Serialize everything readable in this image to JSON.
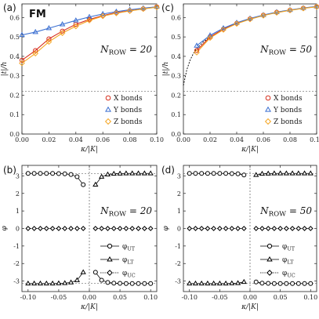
{
  "figure": {
    "tag": "FM"
  },
  "chart_data": [
    {
      "id": "a",
      "type": "line",
      "panel_label": "(a)",
      "annotation": "N_ROW = 20",
      "xlabel": "κ/|K|",
      "ylabel": "|t|/h",
      "xlim": [
        0,
        0.1
      ],
      "ylim": [
        0,
        0.67
      ],
      "xticks": [
        "0.00",
        "0.02",
        "0.04",
        "0.06",
        "0.08",
        "0.10"
      ],
      "yticks": [
        "0.0",
        "0.1",
        "0.2",
        "0.3",
        "0.4",
        "0.5",
        "0.6"
      ],
      "hline": 0.22,
      "legend": "bottom-right",
      "x": [
        0.0,
        0.01,
        0.02,
        0.03,
        0.04,
        0.05,
        0.06,
        0.07,
        0.08,
        0.09,
        0.1
      ],
      "series": [
        {
          "name": "X bonds",
          "color": "#d7301f",
          "marker": "circle",
          "values": [
            0.38,
            0.43,
            0.49,
            0.53,
            0.565,
            0.59,
            0.61,
            0.625,
            0.635,
            0.645,
            0.655
          ]
        },
        {
          "name": "Y bonds",
          "color": "#3b6fd1",
          "marker": "triangle",
          "values": [
            0.51,
            0.525,
            0.545,
            0.565,
            0.585,
            0.603,
            0.618,
            0.63,
            0.64,
            0.648,
            0.655
          ]
        },
        {
          "name": "Z bonds",
          "color": "#f5a623",
          "marker": "diamond",
          "values": [
            0.365,
            0.415,
            0.475,
            0.52,
            0.555,
            0.585,
            0.607,
            0.622,
            0.634,
            0.644,
            0.653
          ]
        }
      ]
    },
    {
      "id": "c",
      "type": "line",
      "panel_label": "(c)",
      "annotation": "N_ROW = 50",
      "xlabel": "κ/|K|",
      "ylabel": "|t|/h",
      "xlim": [
        0,
        0.1
      ],
      "ylim": [
        0,
        0.67
      ],
      "xticks": [
        "0.00",
        "0.02",
        "0.04",
        "0.06",
        "0.08",
        "0.10"
      ],
      "yticks": [
        "0.0",
        "0.1",
        "0.2",
        "0.3",
        "0.4",
        "0.5",
        "0.6"
      ],
      "hline": 0.22,
      "legend": "bottom-right",
      "x": [
        0.01,
        0.02,
        0.03,
        0.04,
        0.05,
        0.06,
        0.07,
        0.08,
        0.09,
        0.1
      ],
      "series": [
        {
          "name": "X bonds",
          "color": "#d7301f",
          "marker": "circle",
          "values": [
            0.43,
            0.5,
            0.54,
            0.57,
            0.593,
            0.612,
            0.627,
            0.638,
            0.648,
            0.656
          ]
        },
        {
          "name": "Y bonds",
          "color": "#3b6fd1",
          "marker": "triangle",
          "values": [
            0.455,
            0.508,
            0.545,
            0.573,
            0.595,
            0.613,
            0.628,
            0.639,
            0.649,
            0.657
          ]
        },
        {
          "name": "Z bonds",
          "color": "#f5a623",
          "marker": "diamond",
          "values": [
            0.42,
            0.495,
            0.537,
            0.568,
            0.591,
            0.61,
            0.625,
            0.637,
            0.647,
            0.655
          ]
        }
      ],
      "fit_curve": {
        "x": [
          0.0,
          0.0025,
          0.005,
          0.0075,
          0.01,
          0.015,
          0.02,
          0.03,
          0.04,
          0.05,
          0.06,
          0.07,
          0.08,
          0.09,
          0.1
        ],
        "values": [
          0.25,
          0.33,
          0.38,
          0.415,
          0.44,
          0.475,
          0.5,
          0.54,
          0.57,
          0.593,
          0.612,
          0.627,
          0.638,
          0.648,
          0.656
        ]
      }
    },
    {
      "id": "b",
      "type": "scatter",
      "panel_label": "(b)",
      "annotation": "N_ROW = 20",
      "xlabel": "κ/|K|",
      "ylabel": "φ",
      "xlim": [
        -0.11,
        0.11
      ],
      "ylim": [
        -3.6,
        3.6
      ],
      "xticks": [
        "-0.10",
        "-0.05",
        "0.00",
        "0.05",
        "0.10"
      ],
      "yticks": [
        "-3",
        "-2",
        "-1",
        "0",
        "1",
        "2",
        "3"
      ],
      "hline": 3.14159,
      "hline2": -3.14159,
      "vline": 0,
      "legend": "bottom-right",
      "x_neg": [
        -0.1,
        -0.09,
        -0.08,
        -0.07,
        -0.06,
        -0.05,
        -0.04,
        -0.03,
        -0.02,
        -0.01
      ],
      "x_pos": [
        0.01,
        0.02,
        0.03,
        0.04,
        0.05,
        0.06,
        0.07,
        0.08,
        0.09,
        0.1
      ],
      "series": [
        {
          "name": "φ_UT",
          "marker": "circle",
          "neg": [
            3.14,
            3.14,
            3.14,
            3.14,
            3.14,
            3.13,
            3.12,
            3.08,
            2.95,
            2.5
          ],
          "pos": [
            -2.5,
            -2.95,
            -3.08,
            -3.12,
            -3.13,
            -3.14,
            -3.14,
            -3.14,
            -3.14,
            -3.14
          ]
        },
        {
          "name": "φ_LT",
          "marker": "triangle",
          "neg": [
            -3.14,
            -3.14,
            -3.14,
            -3.14,
            -3.14,
            -3.13,
            -3.12,
            -3.08,
            -2.95,
            -2.5
          ],
          "pos": [
            2.5,
            2.95,
            3.08,
            3.12,
            3.13,
            3.14,
            3.14,
            3.14,
            3.14,
            3.14
          ]
        },
        {
          "name": "φ_UC",
          "marker": "diamond",
          "neg": [
            0,
            0,
            0,
            0,
            0,
            0,
            0,
            0,
            0,
            0
          ],
          "pos": [
            0,
            0,
            0,
            0,
            0,
            0,
            0,
            0,
            0,
            0
          ]
        }
      ]
    },
    {
      "id": "d",
      "type": "scatter",
      "panel_label": "(d)",
      "annotation": "N_ROW = 50",
      "xlabel": "κ/|K|",
      "ylabel": "φ",
      "xlim": [
        -0.11,
        0.11
      ],
      "ylim": [
        -3.6,
        3.6
      ],
      "xticks": [
        "-0.10",
        "-0.05",
        "0.00",
        "0.05",
        "0.10"
      ],
      "yticks": [
        "-3",
        "-2",
        "-1",
        "0",
        "1",
        "2",
        "3"
      ],
      "hline": 3.14159,
      "hline2": -3.14159,
      "vline": 0,
      "legend": "bottom-right",
      "x_neg": [
        -0.1,
        -0.09,
        -0.08,
        -0.07,
        -0.06,
        -0.05,
        -0.04,
        -0.03,
        -0.02,
        -0.01
      ],
      "x_pos": [
        0.01,
        0.02,
        0.03,
        0.04,
        0.05,
        0.06,
        0.07,
        0.08,
        0.09,
        0.1
      ],
      "series": [
        {
          "name": "φ_UT",
          "marker": "circle",
          "neg": [
            3.14,
            3.14,
            3.14,
            3.14,
            3.14,
            3.14,
            3.14,
            3.13,
            3.12,
            3.05
          ],
          "pos": [
            -3.05,
            -3.12,
            -3.13,
            -3.14,
            -3.14,
            -3.14,
            -3.14,
            -3.14,
            -3.14,
            -3.14
          ]
        },
        {
          "name": "φ_LT",
          "marker": "triangle",
          "neg": [
            -3.14,
            -3.14,
            -3.14,
            -3.14,
            -3.14,
            -3.14,
            -3.14,
            -3.13,
            -3.12,
            -3.05
          ],
          "pos": [
            3.05,
            3.12,
            3.13,
            3.14,
            3.14,
            3.14,
            3.14,
            3.14,
            3.14,
            3.14
          ]
        },
        {
          "name": "φ_UC",
          "marker": "diamond",
          "neg": [
            0,
            0,
            0,
            0,
            0,
            0,
            0,
            0,
            0,
            0
          ],
          "pos": [
            0,
            0,
            0,
            0,
            0,
            0,
            0,
            0,
            0,
            0
          ]
        }
      ]
    }
  ]
}
